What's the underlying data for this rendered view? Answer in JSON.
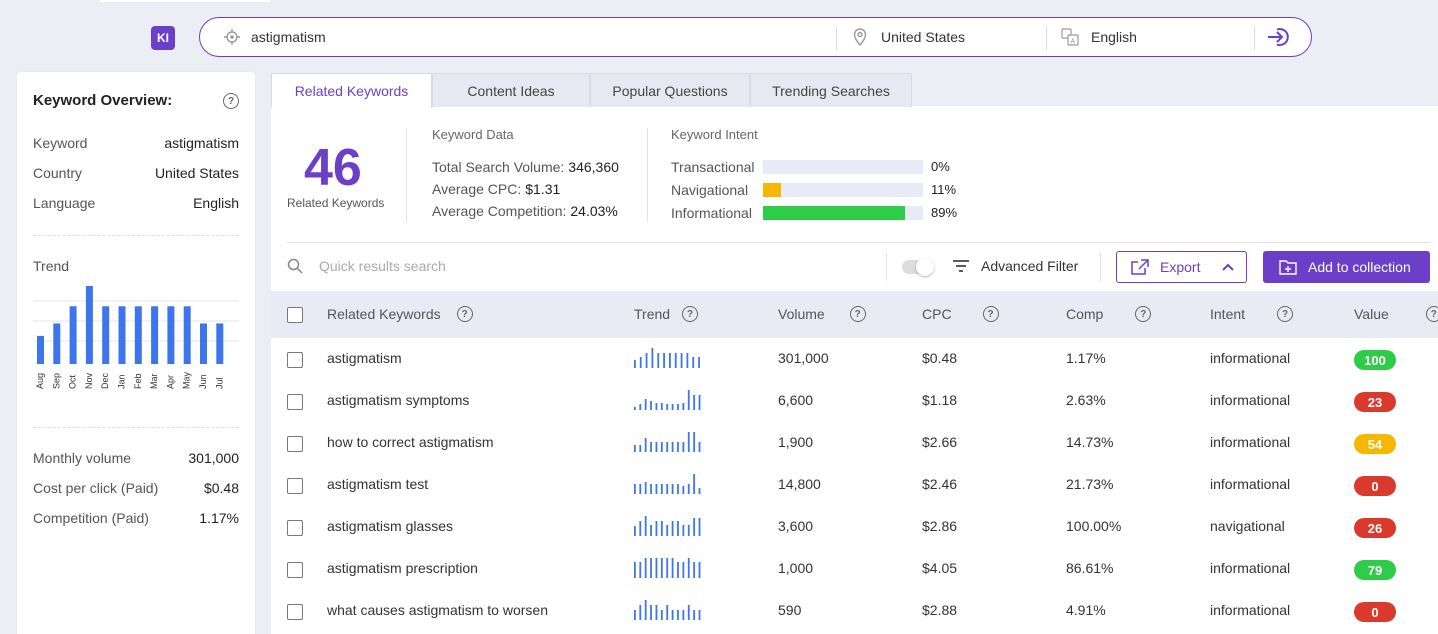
{
  "logo": "KI",
  "search": {
    "keyword": "astigmatism",
    "country": "United States",
    "language": "English"
  },
  "overview": {
    "title": "Keyword Overview:",
    "rows": [
      {
        "k": "Keyword",
        "v": "astigmatism"
      },
      {
        "k": "Country",
        "v": "United States"
      },
      {
        "k": "Language",
        "v": "English"
      }
    ],
    "trend_label": "Trend",
    "trend_months": [
      "Aug",
      "Sep",
      "Oct",
      "Nov",
      "Dec",
      "Jan",
      "Feb",
      "Mar",
      "Apr",
      "May",
      "Jun",
      "Jul"
    ],
    "trend_values": [
      0.36,
      0.52,
      0.74,
      1.0,
      0.74,
      0.74,
      0.74,
      0.74,
      0.74,
      0.74,
      0.52,
      0.52
    ],
    "stats": [
      {
        "k": "Monthly volume",
        "v": "301,000"
      },
      {
        "k": "Cost per click (Paid)",
        "v": "$0.48"
      },
      {
        "k": "Competition (Paid)",
        "v": "1.17%"
      }
    ]
  },
  "tabs": [
    "Related Keywords",
    "Content Ideas",
    "Popular Questions",
    "Trending Searches"
  ],
  "summary": {
    "count": "46",
    "count_label": "Related Keywords",
    "kd_title": "Keyword Data",
    "kd_rows": [
      {
        "k": "Total Search Volume:",
        "v": "346,360"
      },
      {
        "k": "Average CPC:",
        "v": "$1.31"
      },
      {
        "k": "Average Competition:",
        "v": "24.03%"
      }
    ],
    "intent_title": "Keyword Intent",
    "intents": [
      {
        "name": "Transactional",
        "pct": "0%",
        "frac": 0.0,
        "color": "#f5b800"
      },
      {
        "name": "Navigational",
        "pct": "11%",
        "frac": 0.11,
        "color": "#f5b800"
      },
      {
        "name": "Informational",
        "pct": "89%",
        "frac": 0.89,
        "color": "#2ecc48"
      }
    ]
  },
  "toolbar": {
    "search_placeholder": "Quick results search",
    "advanced_filter": "Advanced Filter",
    "export": "Export",
    "add_collection": "Add to collection"
  },
  "columns": [
    "Related Keywords",
    "Trend",
    "Volume",
    "CPC",
    "Comp",
    "Intent",
    "Value"
  ],
  "rows": [
    {
      "kw": "astigmatism",
      "vol": "301,000",
      "cpc": "$0.48",
      "comp": "1.17%",
      "intent": "informational",
      "value": "100",
      "color": "#2ecc48",
      "trend": [
        0.4,
        0.55,
        0.75,
        1.0,
        0.75,
        0.75,
        0.75,
        0.75,
        0.75,
        0.75,
        0.55,
        0.55
      ]
    },
    {
      "kw": "astigmatism symptoms",
      "vol": "6,600",
      "cpc": "$1.18",
      "comp": "2.63%",
      "intent": "informational",
      "value": "23",
      "color": "#d93a2b",
      "trend": [
        0.15,
        0.3,
        0.55,
        0.45,
        0.35,
        0.35,
        0.3,
        0.3,
        0.3,
        0.35,
        1.0,
        0.75,
        0.75
      ]
    },
    {
      "kw": "how to correct astigmatism",
      "vol": "1,900",
      "cpc": "$2.66",
      "comp": "14.73%",
      "intent": "informational",
      "value": "54",
      "color": "#f5b800",
      "trend": [
        0.35,
        0.35,
        0.7,
        0.5,
        0.5,
        0.5,
        0.5,
        0.5,
        0.5,
        0.5,
        1.0,
        1.0,
        0.5
      ]
    },
    {
      "kw": "astigmatism test",
      "vol": "14,800",
      "cpc": "$2.46",
      "comp": "21.73%",
      "intent": "informational",
      "value": "0",
      "color": "#d93a2b",
      "trend": [
        0.5,
        0.5,
        0.6,
        0.5,
        0.5,
        0.5,
        0.5,
        0.5,
        0.5,
        0.4,
        0.5,
        1.0,
        0.3
      ]
    },
    {
      "kw": "astigmatism glasses",
      "vol": "3,600",
      "cpc": "$2.86",
      "comp": "100.00%",
      "intent": "navigational",
      "value": "26",
      "color": "#d93a2b",
      "trend": [
        0.5,
        0.75,
        1.0,
        0.55,
        0.75,
        0.75,
        0.55,
        0.75,
        0.75,
        0.55,
        0.55,
        0.9,
        0.9
      ]
    },
    {
      "kw": "astigmatism prescription",
      "vol": "1,000",
      "cpc": "$4.05",
      "comp": "86.61%",
      "intent": "informational",
      "value": "79",
      "color": "#2ecc48",
      "trend": [
        0.8,
        0.8,
        1.0,
        1.0,
        1.0,
        1.0,
        1.0,
        1.0,
        0.8,
        0.8,
        1.0,
        0.8,
        0.8
      ]
    },
    {
      "kw": "what causes astigmatism to worsen",
      "vol": "590",
      "cpc": "$2.88",
      "comp": "4.91%",
      "intent": "informational",
      "value": "0",
      "color": "#d93a2b",
      "trend": [
        0.5,
        0.75,
        1.0,
        0.75,
        0.75,
        0.5,
        0.75,
        0.5,
        0.5,
        0.5,
        0.75,
        0.5,
        0.5
      ]
    }
  ]
}
